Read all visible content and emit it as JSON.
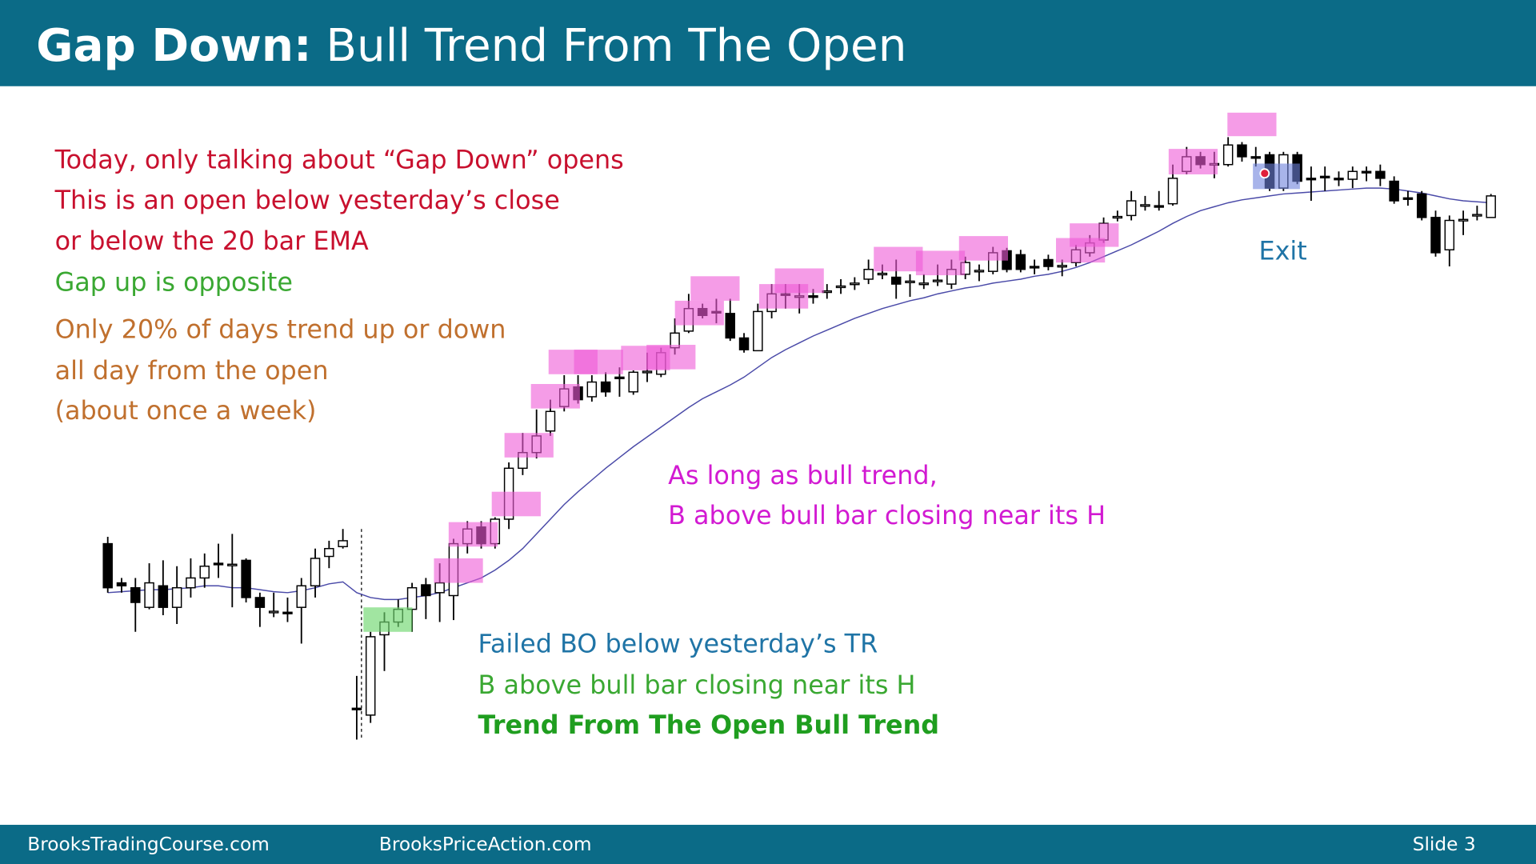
{
  "header": {
    "title_bold": "Gap Down:",
    "title": "Bull Trend From The Open"
  },
  "notes": [
    "Today, only talking about “Gap Down” opens",
    "This is an open below yesterday’s close",
    "or below the 20 bar EMA",
    "Gap up is opposite",
    "Only 20% of days trend up or down",
    "all day from the open",
    "(about once a week)"
  ],
  "annotations": [
    "As long as bull trend,",
    "B above bull bar closing near its H"
  ],
  "callout": [
    "Failed BO below yesterday’s TR",
    "B above bull bar closing near its H",
    "Trend From The Open Bull Trend"
  ],
  "exit_label": "Exit",
  "footer": {
    "left": "BrooksTradingCourse.com",
    "center": "BrooksPriceAction.com",
    "slide": "Slide  3"
  },
  "chart_data": {
    "type": "candlestick",
    "bull_color": "#ffffff",
    "bear_color": "#000000",
    "ema_color": "#4a4aa8",
    "open": [
      445,
      405,
      400,
      380,
      402,
      380,
      400,
      410,
      425,
      423,
      428,
      390,
      375,
      375,
      380,
      402,
      432,
      442,
      277,
      270,
      352,
      365,
      378,
      403,
      395,
      392,
      445,
      462,
      445,
      470,
      522,
      538,
      560,
      585,
      605,
      595,
      610,
      615,
      600,
      620,
      618,
      645,
      662,
      685,
      682,
      680,
      655,
      642,
      682,
      700,
      697,
      698,
      702,
      707,
      710,
      715,
      720,
      717,
      712,
      710,
      713,
      710,
      720,
      723,
      723,
      744,
      740,
      728,
      735,
      728,
      732,
      742,
      755,
      778,
      780,
      790,
      790,
      792,
      825,
      840,
      832,
      832,
      852,
      840,
      842,
      808,
      842,
      818,
      820,
      818,
      817,
      825,
      825,
      815,
      798,
      802,
      778,
      745,
      775,
      780,
      778
    ],
    "high": [
      452,
      410,
      410,
      425,
      428,
      422,
      430,
      435,
      445,
      455,
      430,
      395,
      395,
      390,
      410,
      440,
      448,
      460,
      310,
      355,
      375,
      388,
      405,
      410,
      425,
      450,
      468,
      468,
      472,
      528,
      558,
      582,
      592,
      617,
      617,
      617,
      620,
      625,
      622,
      640,
      645,
      675,
      700,
      690,
      695,
      695,
      660,
      690,
      710,
      710,
      710,
      705,
      710,
      715,
      717,
      735,
      730,
      735,
      720,
      720,
      730,
      735,
      738,
      730,
      748,
      747,
      745,
      735,
      740,
      735,
      750,
      760,
      778,
      785,
      805,
      800,
      805,
      832,
      850,
      845,
      845,
      860,
      855,
      850,
      845,
      845,
      845,
      830,
      830,
      825,
      830,
      830,
      832,
      820,
      805,
      805,
      785,
      780,
      785,
      790,
      802
    ],
    "low": [
      395,
      395,
      355,
      378,
      372,
      363,
      390,
      400,
      410,
      380,
      385,
      360,
      370,
      365,
      343,
      390,
      420,
      440,
      245,
      262,
      315,
      360,
      355,
      368,
      365,
      367,
      435,
      440,
      440,
      460,
      515,
      532,
      555,
      580,
      588,
      590,
      595,
      595,
      597,
      610,
      615,
      638,
      660,
      675,
      670,
      652,
      640,
      642,
      675,
      685,
      680,
      690,
      695,
      700,
      704,
      710,
      715,
      695,
      697,
      705,
      708,
      705,
      715,
      713,
      720,
      722,
      722,
      720,
      724,
      718,
      728,
      738,
      752,
      774,
      775,
      785,
      785,
      790,
      822,
      828,
      818,
      830,
      835,
      830,
      805,
      805,
      812,
      795,
      805,
      810,
      808,
      815,
      810,
      792,
      790,
      775,
      738,
      728,
      760,
      775,
      778
    ],
    "close": [
      400,
      402,
      385,
      405,
      380,
      400,
      410,
      422,
      424,
      424,
      390,
      380,
      376,
      374,
      402,
      430,
      440,
      448,
      276,
      350,
      365,
      378,
      400,
      392,
      405,
      445,
      460,
      445,
      470,
      522,
      538,
      555,
      580,
      603,
      592,
      610,
      600,
      614,
      620,
      621,
      640,
      660,
      685,
      678,
      681,
      655,
      643,
      682,
      700,
      699,
      698,
      697,
      703,
      708,
      711,
      725,
      721,
      710,
      713,
      711,
      714,
      725,
      732,
      724,
      742,
      725,
      725,
      727,
      728,
      729,
      745,
      752,
      772,
      779,
      795,
      791,
      789,
      818,
      840,
      832,
      833,
      852,
      840,
      839,
      808,
      842,
      815,
      817,
      819,
      817,
      825,
      824,
      818,
      795,
      797,
      778,
      742,
      775,
      776,
      781,
      800
    ],
    "ema": [
      395,
      396,
      397,
      398,
      398,
      399,
      400,
      402,
      402,
      400,
      400,
      398,
      396,
      395,
      397,
      400,
      404,
      406,
      395,
      390,
      388,
      388,
      390,
      392,
      395,
      400,
      405,
      410,
      418,
      428,
      440,
      455,
      470,
      485,
      498,
      510,
      522,
      533,
      544,
      554,
      564,
      574,
      584,
      593,
      600,
      607,
      615,
      625,
      635,
      643,
      650,
      657,
      663,
      669,
      675,
      680,
      685,
      689,
      693,
      696,
      700,
      703,
      706,
      708,
      711,
      713,
      715,
      718,
      720,
      723,
      727,
      732,
      738,
      744,
      750,
      757,
      764,
      772,
      779,
      785,
      789,
      793,
      796,
      798,
      800,
      802,
      803,
      804,
      805,
      806,
      807,
      808,
      808,
      807,
      805,
      803,
      800,
      797,
      795,
      794,
      793
    ]
  }
}
